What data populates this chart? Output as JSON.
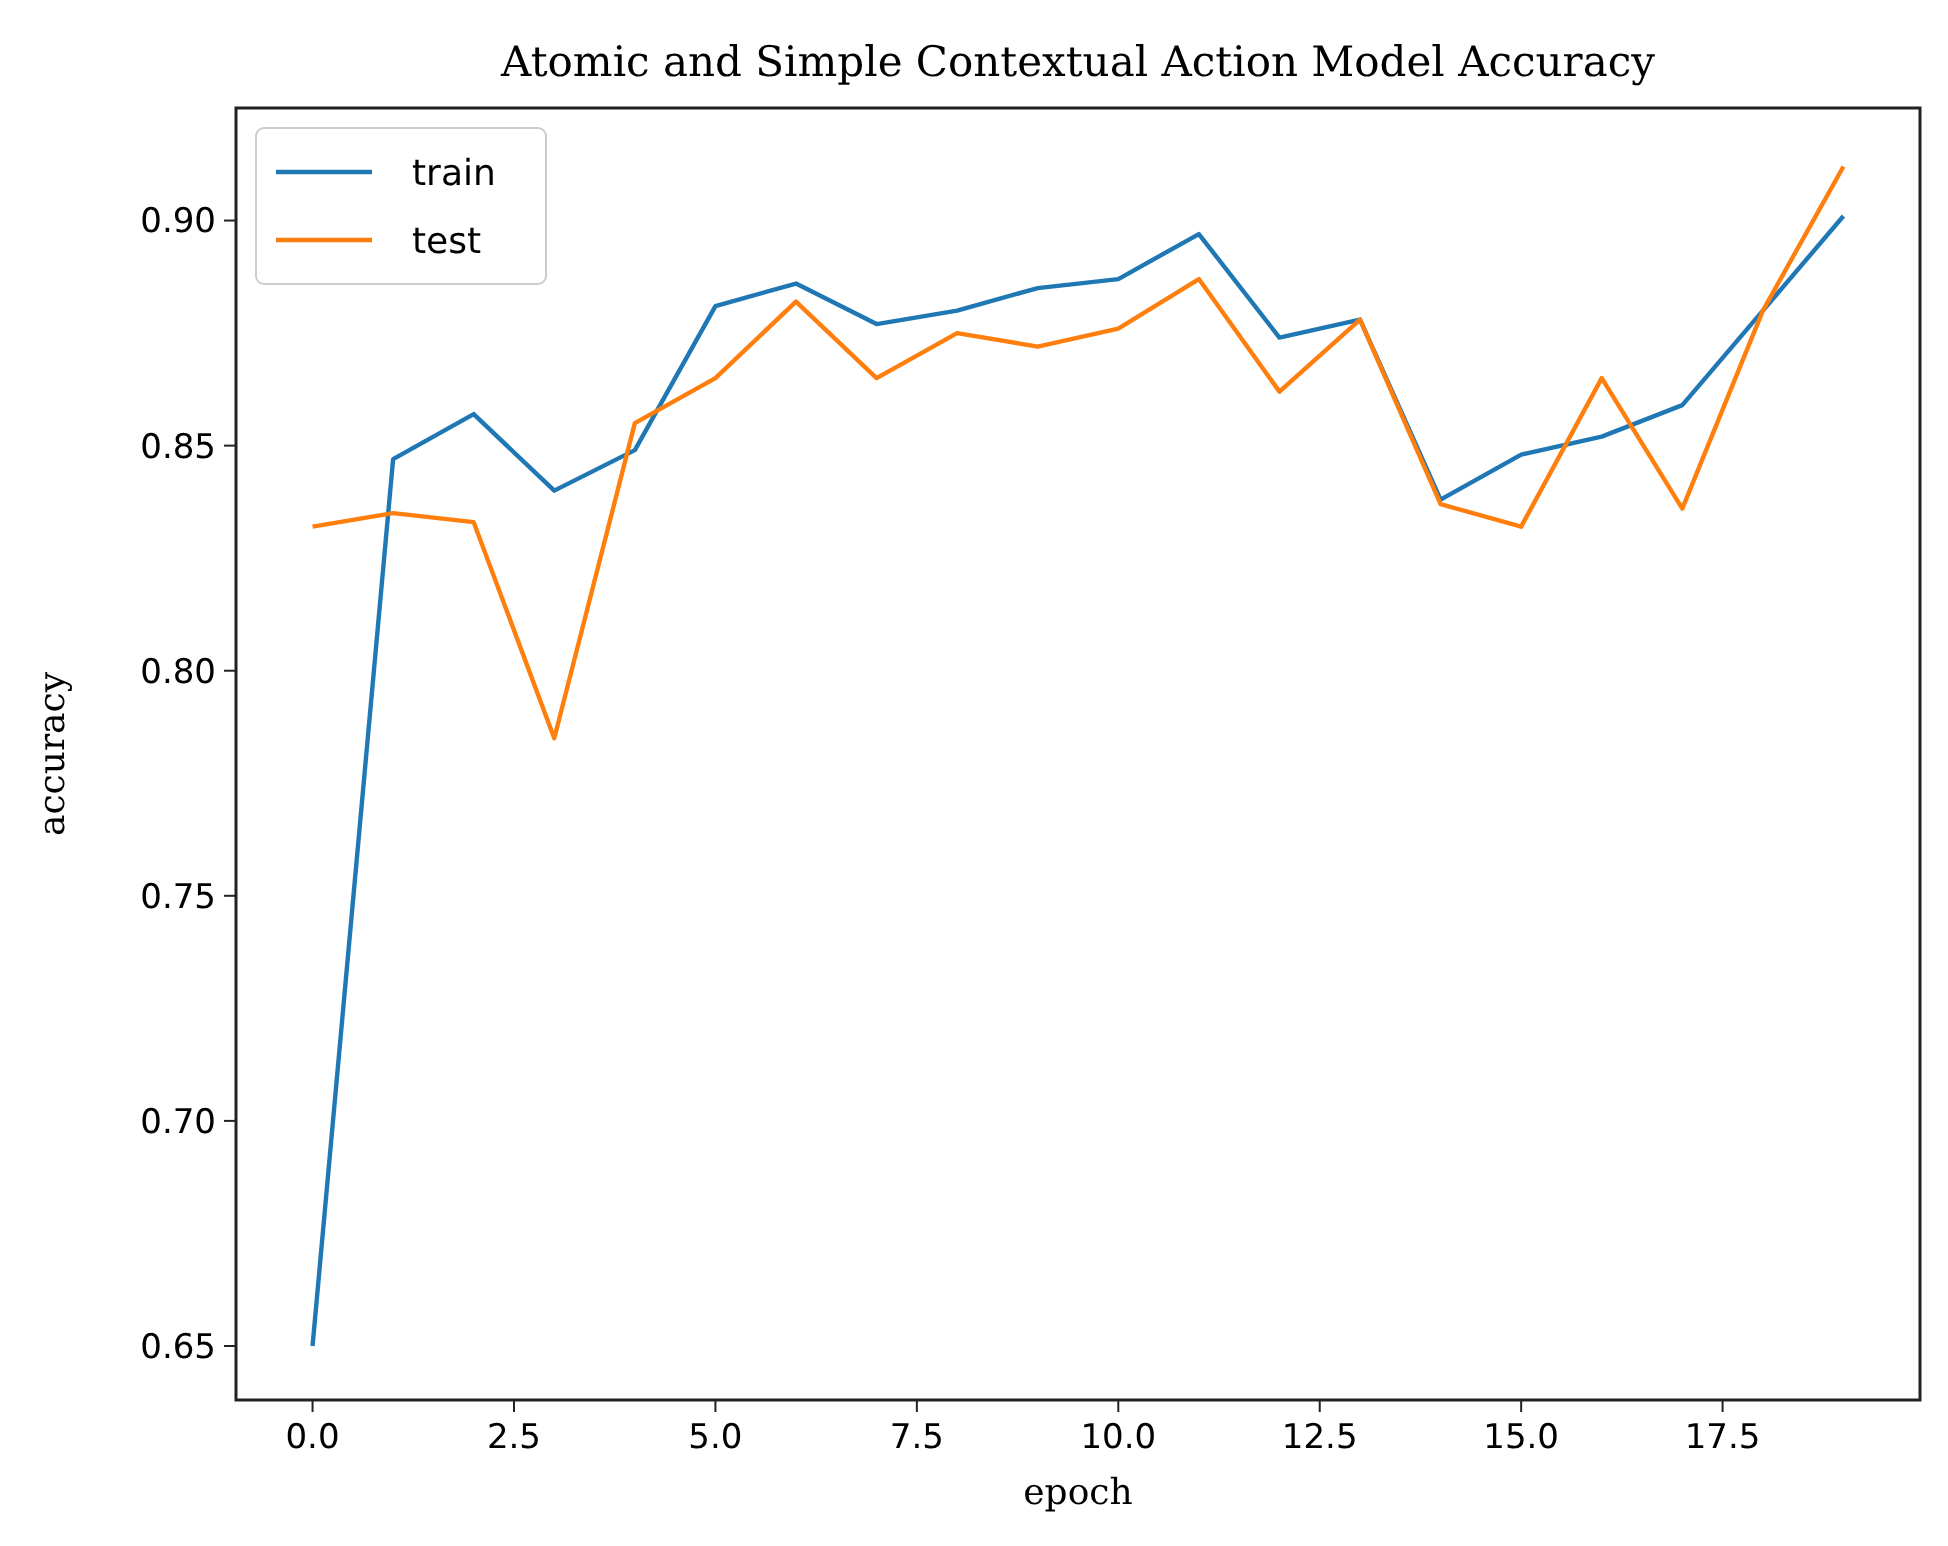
{
  "chart_data": {
    "type": "line",
    "title": "Atomic and Simple Contextual Action Model Accuracy",
    "xlabel": "epoch",
    "ylabel": "accuracy",
    "x": [
      0,
      1,
      2,
      3,
      4,
      5,
      6,
      7,
      8,
      9,
      10,
      11,
      12,
      13,
      14,
      15,
      16,
      17,
      18,
      19
    ],
    "series": [
      {
        "name": "train",
        "color": "#1f77b4",
        "values": [
          0.65,
          0.847,
          0.857,
          0.84,
          0.849,
          0.881,
          0.886,
          0.877,
          0.88,
          0.885,
          0.887,
          0.897,
          0.874,
          0.878,
          0.838,
          0.848,
          0.852,
          0.859,
          0.88,
          0.901
        ]
      },
      {
        "name": "test",
        "color": "#ff7f0e",
        "values": [
          0.832,
          0.835,
          0.833,
          0.785,
          0.855,
          0.865,
          0.882,
          0.865,
          0.875,
          0.872,
          0.876,
          0.887,
          0.862,
          0.878,
          0.837,
          0.832,
          0.865,
          0.836,
          0.88,
          0.912
        ]
      }
    ],
    "xlim": [
      -0.95,
      19.95
    ],
    "xticks": [
      {
        "value": 0,
        "label": "0.0"
      },
      {
        "value": 2.5,
        "label": "2.5"
      },
      {
        "value": 5,
        "label": "5.0"
      },
      {
        "value": 7.5,
        "label": "7.5"
      },
      {
        "value": 10,
        "label": "10.0"
      },
      {
        "value": 12.5,
        "label": "12.5"
      },
      {
        "value": 15,
        "label": "15.0"
      },
      {
        "value": 17.5,
        "label": "17.5"
      }
    ],
    "ylim": [
      0.638,
      0.925
    ],
    "yticks": [
      {
        "value": 0.65,
        "label": "0.65"
      },
      {
        "value": 0.7,
        "label": "0.70"
      },
      {
        "value": 0.75,
        "label": "0.75"
      },
      {
        "value": 0.8,
        "label": "0.80"
      },
      {
        "value": 0.85,
        "label": "0.85"
      },
      {
        "value": 0.9,
        "label": "0.90"
      }
    ],
    "legend": "top left",
    "grid": false,
    "line_style": "solid",
    "marker": "none"
  }
}
